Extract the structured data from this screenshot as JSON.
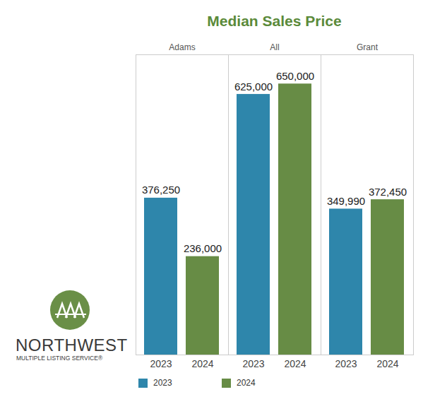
{
  "chart_data": {
    "type": "bar",
    "title": "Median Sales Price",
    "facets": [
      "Adams",
      "All",
      "Grant"
    ],
    "series": [
      {
        "name": "2023",
        "color": "#2e86ab",
        "values": [
          376250,
          625000,
          349990
        ],
        "value_labels": [
          "376,250",
          "625,000",
          "349,990"
        ]
      },
      {
        "name": "2024",
        "color": "#678c45",
        "values": [
          236000,
          650000,
          372450
        ],
        "value_labels": [
          "236,000",
          "650,000",
          "372,450"
        ]
      }
    ],
    "ylim": [
      0,
      720000
    ],
    "data_labels": true,
    "tick_labels": "x",
    "legend": "bottom",
    "logo_text": [
      "NORTHWEST",
      "MULTIPLE LISTING SERVICE®"
    ]
  }
}
